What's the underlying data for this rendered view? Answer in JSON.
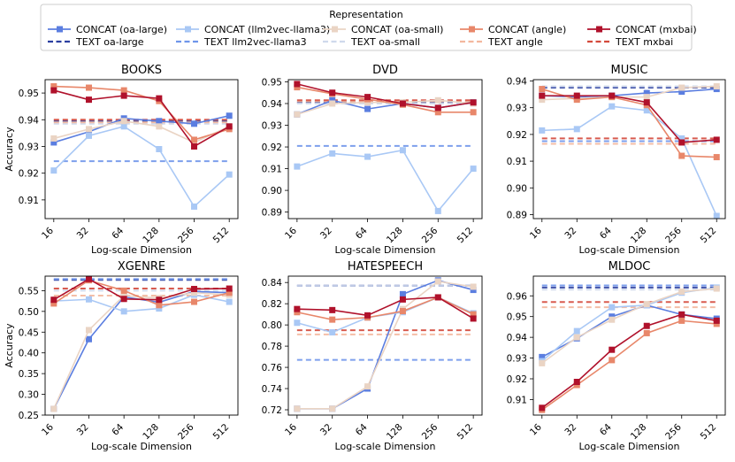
{
  "legend": {
    "title": "Representation",
    "entries": [
      {
        "name": "CONCAT (oa-large)",
        "color": "#5b7ee0",
        "style": "solid-square"
      },
      {
        "name": "CONCAT (llm2vec-llama3)",
        "color": "#a9c8f5",
        "style": "solid-square"
      },
      {
        "name": "CONCAT (oa-small)",
        "color": "#ead4c4",
        "style": "solid-square"
      },
      {
        "name": "CONCAT (angle)",
        "color": "#e8876a",
        "style": "solid-square"
      },
      {
        "name": "CONCAT (mxbai)",
        "color": "#b0112b",
        "style": "solid-square"
      },
      {
        "name": "TEXT oa-large",
        "color": "#2b3fa0",
        "style": "dashed"
      },
      {
        "name": "TEXT llm2vec-llama3",
        "color": "#6f95ea",
        "style": "dashed"
      },
      {
        "name": "TEXT oa-small",
        "color": "#cfd9ec",
        "style": "dashed"
      },
      {
        "name": "TEXT angle",
        "color": "#f3b89e",
        "style": "dashed"
      },
      {
        "name": "TEXT mxbai",
        "color": "#d44a3c",
        "style": "dashed"
      }
    ]
  },
  "chart_data": [
    {
      "type": "line",
      "title": "BOOKS",
      "xlabel": "Log-scale Dimension",
      "ylabel": "Accuracy",
      "categories": [
        "16",
        "32",
        "64",
        "128",
        "256",
        "512"
      ],
      "ylim": [
        0.903,
        0.955
      ],
      "yticks": [
        0.91,
        0.92,
        0.93,
        0.94,
        0.95
      ],
      "ytick_labels": [
        "0.91",
        "0.92",
        "0.93",
        "0.94",
        "0.95"
      ],
      "series": [
        {
          "name": "CONCAT (oa-large)",
          "values": [
            0.9315,
            0.9355,
            0.9405,
            0.9395,
            0.9385,
            0.9415
          ]
        },
        {
          "name": "CONCAT (llm2vec-llama3)",
          "values": [
            0.921,
            0.934,
            0.9375,
            0.929,
            0.9075,
            0.9195
          ]
        },
        {
          "name": "CONCAT (oa-small)",
          "values": [
            0.933,
            0.9365,
            0.9395,
            0.9375,
            0.9315,
            0.9375
          ]
        },
        {
          "name": "CONCAT (angle)",
          "values": [
            0.9525,
            0.952,
            0.951,
            0.947,
            0.9325,
            0.9365
          ]
        },
        {
          "name": "CONCAT (mxbai)",
          "values": [
            0.951,
            0.9475,
            0.949,
            0.948,
            0.93,
            0.9375
          ]
        }
      ],
      "text_baselines": [
        {
          "name": "TEXT oa-large",
          "value": 0.9395
        },
        {
          "name": "TEXT llm2vec-llama3",
          "value": 0.9245
        },
        {
          "name": "TEXT oa-small",
          "value": 0.9385
        },
        {
          "name": "TEXT angle",
          "value": 0.939
        },
        {
          "name": "TEXT mxbai",
          "value": 0.94
        }
      ]
    },
    {
      "type": "line",
      "title": "DVD",
      "xlabel": "Log-scale Dimension",
      "ylabel": "",
      "categories": [
        "16",
        "32",
        "64",
        "128",
        "256",
        "512"
      ],
      "ylim": [
        0.887,
        0.951
      ],
      "yticks": [
        0.89,
        0.9,
        0.91,
        0.92,
        0.93,
        0.94,
        0.95
      ],
      "ytick_labels": [
        "0.89",
        "0.90",
        "0.91",
        "0.92",
        "0.93",
        "0.94",
        "0.95"
      ],
      "series": [
        {
          "name": "CONCAT (oa-large)",
          "values": [
            0.935,
            0.9415,
            0.9375,
            0.94,
            0.938,
            0.9405
          ]
        },
        {
          "name": "CONCAT (llm2vec-llama3)",
          "values": [
            0.911,
            0.917,
            0.9155,
            0.9185,
            0.8905,
            0.91
          ]
        },
        {
          "name": "CONCAT (oa-small)",
          "values": [
            0.935,
            0.94,
            0.9405,
            0.9405,
            0.9415,
            0.94
          ]
        },
        {
          "name": "CONCAT (angle)",
          "values": [
            0.9475,
            0.9445,
            0.942,
            0.9395,
            0.936,
            0.936
          ]
        },
        {
          "name": "CONCAT (mxbai)",
          "values": [
            0.949,
            0.945,
            0.943,
            0.94,
            0.938,
            0.9405
          ]
        }
      ],
      "text_baselines": [
        {
          "name": "TEXT oa-large",
          "value": 0.9405
        },
        {
          "name": "TEXT llm2vec-llama3",
          "value": 0.9205
        },
        {
          "name": "TEXT oa-small",
          "value": 0.94
        },
        {
          "name": "TEXT angle",
          "value": 0.941
        },
        {
          "name": "TEXT mxbai",
          "value": 0.9415
        }
      ]
    },
    {
      "type": "line",
      "title": "MUSIC",
      "xlabel": "Log-scale Dimension",
      "ylabel": "",
      "categories": [
        "16",
        "32",
        "64",
        "128",
        "256",
        "512"
      ],
      "ylim": [
        0.8885,
        0.9405
      ],
      "yticks": [
        0.89,
        0.9,
        0.91,
        0.92,
        0.93,
        0.94
      ],
      "ytick_labels": [
        "0.89",
        "0.90",
        "0.91",
        "0.92",
        "0.93",
        "0.94"
      ],
      "series": [
        {
          "name": "CONCAT (oa-large)",
          "values": [
            0.9345,
            0.934,
            0.9345,
            0.9355,
            0.936,
            0.937
          ]
        },
        {
          "name": "CONCAT (llm2vec-llama3)",
          "values": [
            0.9215,
            0.922,
            0.9305,
            0.929,
            0.9185,
            0.8895
          ]
        },
        {
          "name": "CONCAT (oa-small)",
          "values": [
            0.933,
            0.9335,
            0.934,
            0.934,
            0.9375,
            0.938
          ]
        },
        {
          "name": "CONCAT (angle)",
          "values": [
            0.937,
            0.933,
            0.934,
            0.931,
            0.912,
            0.9115
          ]
        },
        {
          "name": "CONCAT (mxbai)",
          "values": [
            0.9345,
            0.9345,
            0.9345,
            0.932,
            0.917,
            0.918
          ]
        }
      ],
      "text_baselines": [
        {
          "name": "TEXT oa-large",
          "value": 0.9375
        },
        {
          "name": "TEXT llm2vec-llama3",
          "value": 0.9175
        },
        {
          "name": "TEXT oa-small",
          "value": 0.938
        },
        {
          "name": "TEXT angle",
          "value": 0.9165
        },
        {
          "name": "TEXT mxbai",
          "value": 0.9185
        }
      ]
    },
    {
      "type": "line",
      "title": "XGENRE",
      "xlabel": "Log-scale Dimension",
      "ylabel": "Accuracy",
      "categories": [
        "16",
        "32",
        "64",
        "128",
        "256",
        "512"
      ],
      "ylim": [
        0.25,
        0.585
      ],
      "yticks": [
        0.25,
        0.3,
        0.35,
        0.4,
        0.45,
        0.5,
        0.55
      ],
      "ytick_labels": [
        "0.25",
        "0.30",
        "0.35",
        "0.40",
        "0.45",
        "0.50",
        "0.55"
      ],
      "series": [
        {
          "name": "CONCAT (oa-large)",
          "values": [
            0.265,
            0.433,
            0.535,
            0.522,
            0.548,
            0.545
          ]
        },
        {
          "name": "CONCAT (llm2vec-llama3)",
          "values": [
            0.525,
            0.529,
            0.5,
            0.507,
            0.54,
            0.523
          ]
        },
        {
          "name": "CONCAT (oa-small)",
          "values": [
            0.265,
            0.455,
            0.538,
            0.532,
            0.545,
            0.54
          ]
        },
        {
          "name": "CONCAT (angle)",
          "values": [
            0.519,
            0.575,
            0.55,
            0.515,
            0.523,
            0.545
          ]
        },
        {
          "name": "CONCAT (mxbai)",
          "values": [
            0.528,
            0.578,
            0.53,
            0.528,
            0.554,
            0.555
          ]
        }
      ],
      "text_baselines": [
        {
          "name": "TEXT oa-large",
          "value": 0.576
        },
        {
          "name": "TEXT llm2vec-llama3",
          "value": 0.578
        },
        {
          "name": "TEXT oa-small",
          "value": 0.55
        },
        {
          "name": "TEXT angle",
          "value": 0.538
        },
        {
          "name": "TEXT mxbai",
          "value": 0.555
        }
      ]
    },
    {
      "type": "line",
      "title": "HATESPEECH",
      "xlabel": "Log-scale Dimension",
      "ylabel": "",
      "categories": [
        "16",
        "32",
        "64",
        "128",
        "256",
        "512"
      ],
      "ylim": [
        0.715,
        0.846
      ],
      "yticks": [
        0.72,
        0.74,
        0.76,
        0.78,
        0.8,
        0.82,
        0.84
      ],
      "ytick_labels": [
        "0.72",
        "0.74",
        "0.76",
        "0.78",
        "0.80",
        "0.82",
        "0.84"
      ],
      "series": [
        {
          "name": "CONCAT (oa-large)",
          "values": [
            0.721,
            0.721,
            0.74,
            0.829,
            0.842,
            0.833
          ]
        },
        {
          "name": "CONCAT (llm2vec-llama3)",
          "values": [
            0.802,
            0.793,
            0.807,
            0.812,
            0.826,
            0.811
          ]
        },
        {
          "name": "CONCAT (oa-small)",
          "values": [
            0.721,
            0.721,
            0.742,
            0.815,
            0.841,
            0.836
          ]
        },
        {
          "name": "CONCAT (angle)",
          "values": [
            0.812,
            0.805,
            0.807,
            0.813,
            0.826,
            0.81
          ]
        },
        {
          "name": "CONCAT (mxbai)",
          "values": [
            0.815,
            0.814,
            0.809,
            0.824,
            0.826,
            0.806
          ]
        }
      ],
      "text_baselines": [
        {
          "name": "TEXT oa-large",
          "value": 0.837
        },
        {
          "name": "TEXT llm2vec-llama3",
          "value": 0.767
        },
        {
          "name": "TEXT oa-small",
          "value": 0.837
        },
        {
          "name": "TEXT angle",
          "value": 0.791
        },
        {
          "name": "TEXT mxbai",
          "value": 0.795
        }
      ]
    },
    {
      "type": "line",
      "title": "MLDOC",
      "xlabel": "Log-scale Dimension",
      "ylabel": "",
      "categories": [
        "16",
        "32",
        "64",
        "128",
        "256",
        "512"
      ],
      "ylim": [
        0.9025,
        0.9695
      ],
      "yticks": [
        0.91,
        0.92,
        0.93,
        0.94,
        0.95,
        0.96
      ],
      "ytick_labels": [
        "0.91",
        "0.92",
        "0.93",
        "0.94",
        "0.95",
        "0.96"
      ],
      "series": [
        {
          "name": "CONCAT (oa-large)",
          "values": [
            0.9305,
            0.9395,
            0.95,
            0.9555,
            0.951,
            0.949
          ]
        },
        {
          "name": "CONCAT (llm2vec-llama3)",
          "values": [
            0.9285,
            0.943,
            0.9545,
            0.9555,
            0.9615,
            0.964
          ]
        },
        {
          "name": "CONCAT (oa-small)",
          "values": [
            0.9275,
            0.94,
            0.9485,
            0.956,
            0.962,
            0.9635
          ]
        },
        {
          "name": "CONCAT (angle)",
          "values": [
            0.905,
            0.917,
            0.929,
            0.942,
            0.948,
            0.9465
          ]
        },
        {
          "name": "CONCAT (mxbai)",
          "values": [
            0.906,
            0.9185,
            0.934,
            0.9455,
            0.951,
            0.948
          ]
        }
      ],
      "text_baselines": [
        {
          "name": "TEXT oa-large",
          "value": 0.964
        },
        {
          "name": "TEXT llm2vec-llama3",
          "value": 0.965
        },
        {
          "name": "TEXT oa-small",
          "value": 0.963
        },
        {
          "name": "TEXT angle",
          "value": 0.9545
        },
        {
          "name": "TEXT mxbai",
          "value": 0.957
        }
      ]
    }
  ]
}
